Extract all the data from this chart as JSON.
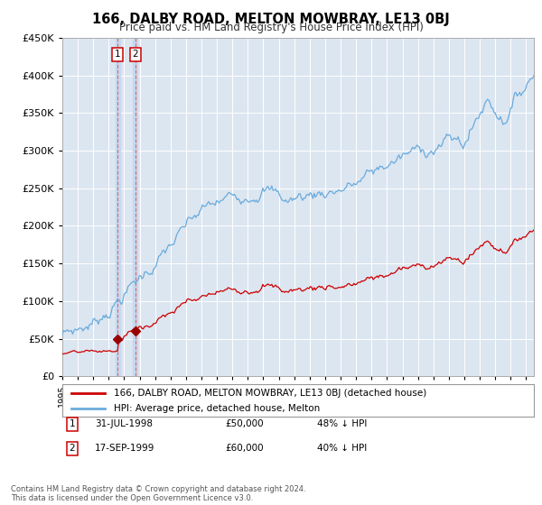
{
  "title": "166, DALBY ROAD, MELTON MOWBRAY, LE13 0BJ",
  "subtitle": "Price paid vs. HM Land Registry's House Price Index (HPI)",
  "ylim": [
    0,
    450000
  ],
  "yticks": [
    0,
    50000,
    100000,
    150000,
    200000,
    250000,
    300000,
    350000,
    400000,
    450000
  ],
  "hpi_color": "#6aabdc",
  "price_color": "#cc0000",
  "marker_color": "#990000",
  "vline_color": "#dd6666",
  "bg_color": "#dce6f1",
  "transactions": [
    {
      "date_num": 1998.58,
      "price": 50000,
      "label": "1",
      "date_str": "31-JUL-1998",
      "pct": "48% ↓ HPI"
    },
    {
      "date_num": 1999.71,
      "price": 60000,
      "label": "2",
      "date_str": "17-SEP-1999",
      "pct": "40% ↓ HPI"
    }
  ],
  "legend_line1": "166, DALBY ROAD, MELTON MOWBRAY, LE13 0BJ (detached house)",
  "legend_line2": "HPI: Average price, detached house, Melton",
  "footnote": "Contains HM Land Registry data © Crown copyright and database right 2024.\nThis data is licensed under the Open Government Licence v3.0.",
  "xmin": 1995.0,
  "xmax": 2025.5
}
